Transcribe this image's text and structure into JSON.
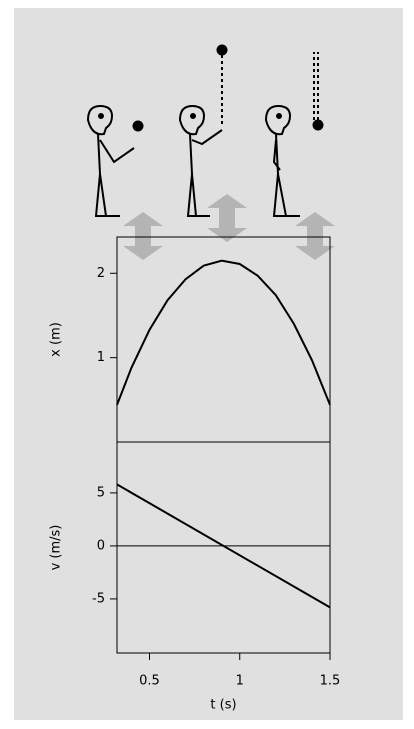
{
  "chart_data": [
    {
      "type": "line",
      "ylabel": "x (m)",
      "x": [
        0.32,
        0.4,
        0.5,
        0.6,
        0.7,
        0.8,
        0.9,
        1.0,
        1.1,
        1.2,
        1.3,
        1.4,
        1.5
      ],
      "series": [
        {
          "color": "#000000",
          "values": [
            0.44,
            0.88,
            1.33,
            1.68,
            1.93,
            2.09,
            2.15,
            2.11,
            1.97,
            1.74,
            1.4,
            0.97,
            0.44
          ]
        }
      ],
      "xlim": [
        0.32,
        1.5
      ],
      "ylim": [
        0,
        2.43
      ],
      "yticks": [
        1,
        2
      ]
    },
    {
      "type": "line",
      "ylabel": "v (m/s)",
      "xlabel": "t (s)",
      "x": [
        0.32,
        1.5
      ],
      "series": [
        {
          "color": "#000000",
          "values": [
            5.8,
            -5.8
          ]
        }
      ],
      "xlim": [
        0.32,
        1.5
      ],
      "ylim": [
        -10.1,
        9.8
      ],
      "yticks": [
        -5,
        0,
        5
      ],
      "xticks": [
        0.5,
        1,
        1.5
      ],
      "zero_line": true
    }
  ]
}
